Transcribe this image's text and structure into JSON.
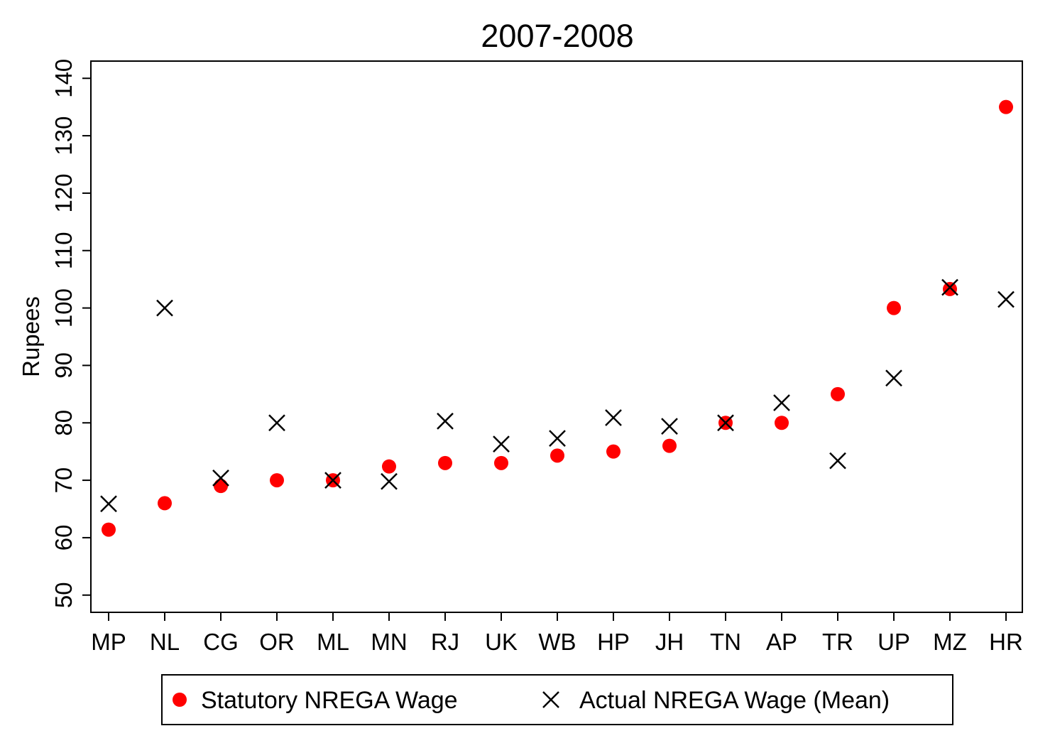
{
  "chart_data": {
    "type": "scatter",
    "title": "2007-2008",
    "xlabel": "",
    "ylabel": "Rupees",
    "ylim": [
      47,
      143
    ],
    "yticks": [
      50,
      60,
      70,
      80,
      90,
      100,
      110,
      120,
      130,
      140
    ],
    "grid": false,
    "legend_position": "bottom",
    "categories": [
      "MP",
      "NL",
      "CG",
      "OR",
      "ML",
      "MN",
      "RJ",
      "UK",
      "WB",
      "HP",
      "JH",
      "TN",
      "AP",
      "TR",
      "UP",
      "MZ",
      "HR"
    ],
    "series": [
      {
        "name": "Statutory NREGA Wage",
        "marker": "circle",
        "color": "#ff0000",
        "values": [
          61.4,
          66,
          69,
          70,
          70,
          72.4,
          73,
          73,
          74.3,
          75,
          76,
          80,
          80,
          85,
          100,
          103.3,
          135
        ]
      },
      {
        "name": "Actual NREGA Wage (Mean)",
        "marker": "x",
        "color": "#000000",
        "values": [
          65.9,
          100,
          70.4,
          80,
          70,
          69.8,
          80.3,
          76.3,
          77.3,
          80.9,
          79.4,
          80,
          83.5,
          73.4,
          87.8,
          103.6,
          101.5
        ]
      }
    ]
  }
}
